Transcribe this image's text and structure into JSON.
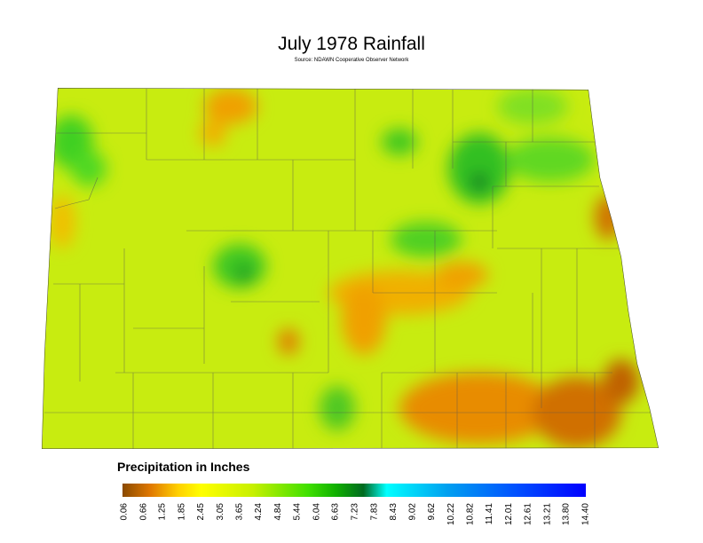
{
  "title": "July 1978 Rainfall",
  "subtitle": "Source: NDAWN Cooperative Observer Network",
  "legend": {
    "title": "Precipitation in Inches",
    "ticks": [
      0.06,
      0.66,
      1.25,
      1.85,
      2.45,
      3.05,
      3.65,
      4.24,
      4.84,
      5.44,
      6.04,
      6.63,
      7.23,
      7.83,
      8.43,
      9.02,
      9.62,
      10.22,
      10.82,
      11.41,
      12.01,
      12.61,
      13.21,
      {
        "value": 13.8,
        "label": "13.80"
      },
      {
        "value": 14.4,
        "label": "14.40"
      }
    ]
  }
}
